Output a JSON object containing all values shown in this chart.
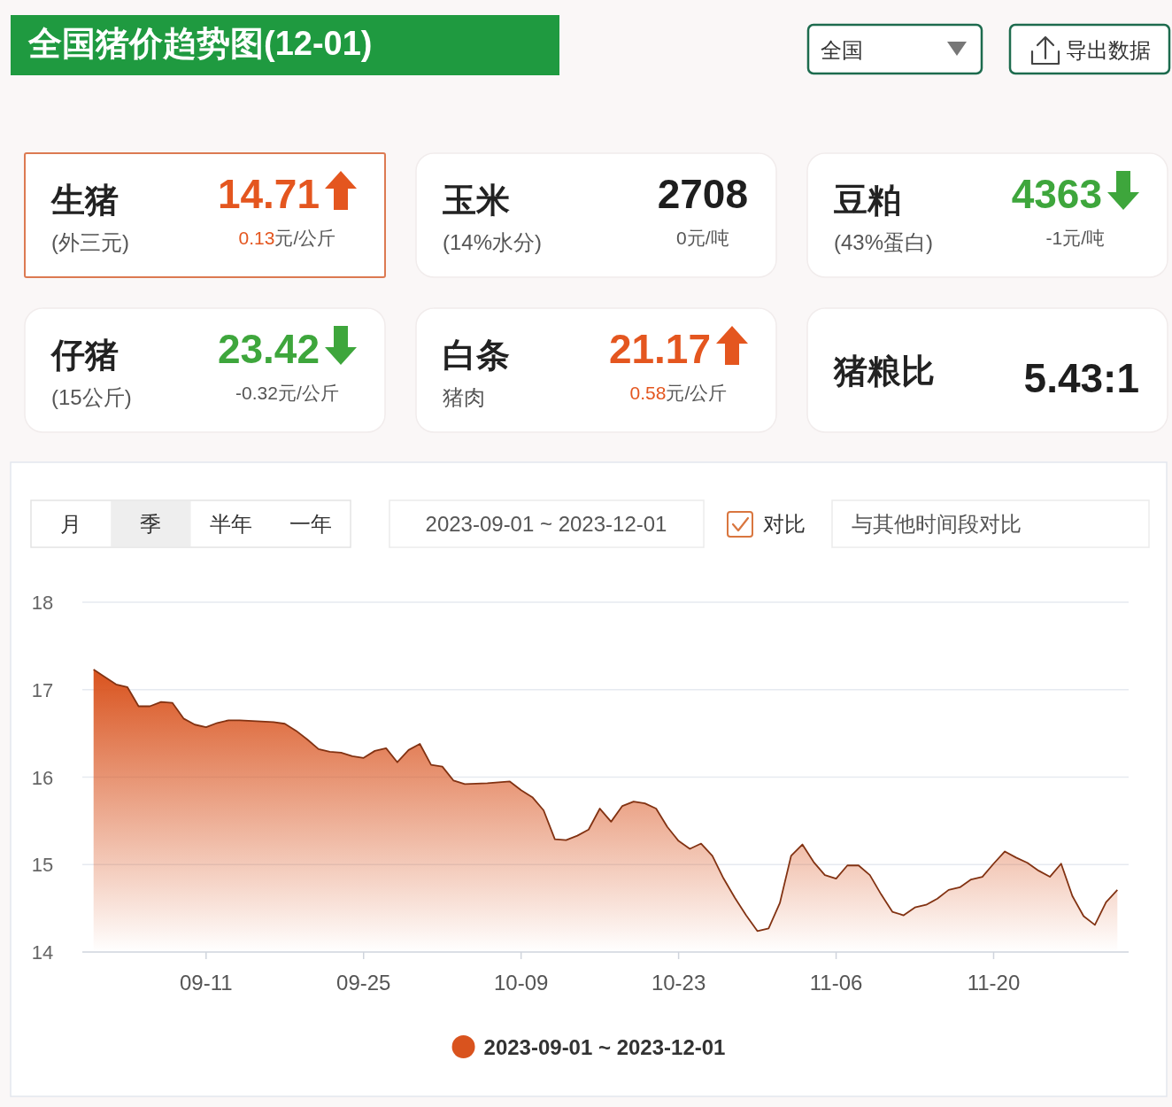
{
  "chart_data": [
    {
      "type": "other",
      "title": "全国猪价趋势图(12-01)",
      "annotations": [
        "全国",
        "导出数据"
      ]
    },
    {
      "type": "other",
      "title": "生猪",
      "subtitle": "(外三元)",
      "annotations": [
        "14.71",
        "0.13元/公斤"
      ]
    },
    {
      "type": "other",
      "title": "玉米",
      "subtitle": "(14%水分)",
      "annotations": [
        "2708",
        "0元/吨"
      ]
    },
    {
      "type": "other",
      "title": "豆粕",
      "subtitle": "(43%蛋白)",
      "annotations": [
        "4363",
        "-1元/吨"
      ]
    },
    {
      "type": "other",
      "title": "仔猪",
      "subtitle": "(15公斤)",
      "annotations": [
        "23.42",
        "-0.32元/公斤"
      ]
    },
    {
      "type": "other",
      "title": "白条",
      "subtitle": "猪肉",
      "annotations": [
        "21.17",
        "0.58元/公斤"
      ]
    },
    {
      "type": "other",
      "title": "猪粮比",
      "annotations": [
        "5.43:1"
      ]
    },
    {
      "type": "area",
      "x": [
        "--09-01",
        "--09-03",
        "--09-04",
        "--09-05",
        "--09-06",
        "--09-07",
        "--09-08",
        "--09-09",
        "--09-10",
        "--09-11",
        "--09-12",
        "--09-13",
        "--09-14",
        "--09-17",
        "--09-18",
        "--09-19",
        "--09-20",
        "--09-21",
        "--09-22",
        "--09-23",
        "--09-24",
        "--09-25",
        "--09-26",
        "--09-27",
        "--09-28",
        "--09-29",
        "--09-30",
        "--10-01",
        "--10-02",
        "--10-03",
        "--10-04",
        "--10-06",
        "--10-08",
        "--10-09",
        "--10-10",
        "--10-11",
        "--10-12",
        "--10-13",
        "--10-14",
        "--10-15",
        "--10-16",
        "--10-17",
        "--10-18",
        "--10-19",
        "--10-20",
        "--10-21",
        "--10-22",
        "--10-23",
        "--10-24",
        "--10-25",
        "--10-26",
        "--10-27",
        "--10-28",
        "--10-29",
        "--10-30",
        "--10-31",
        "--11-01",
        "--11-02",
        "--11-03",
        "--11-04",
        "--11-05",
        "--11-06",
        "--11-07",
        "--11-08",
        "--11-09",
        "--11-10",
        "--11-11",
        "--11-12",
        "--11-13",
        "--11-14",
        "--11-15",
        "--11-16",
        "--11-17",
        "--11-18",
        "--11-19",
        "--11-20",
        "--11-21",
        "--11-22",
        "--11-23",
        "--11-24",
        "--11-25",
        "--11-26",
        "--11-27",
        "--11-28",
        "--11-29",
        "--11-30",
        "--12-01"
      ],
      "series": [
        {
          "name": "2023-09-01 ~ 2023-12-01",
          "color": "#d9531e",
          "values": [
            17.23,
            17.06,
            17.03,
            16.81,
            16.81,
            16.86,
            16.85,
            16.67,
            16.6,
            16.57,
            16.62,
            16.65,
            16.65,
            16.63,
            16.61,
            16.53,
            16.43,
            16.32,
            16.29,
            16.28,
            16.24,
            16.22,
            16.3,
            16.33,
            16.17,
            16.31,
            16.38,
            16.14,
            16.12,
            15.96,
            15.92,
            15.93,
            15.95,
            15.85,
            15.77,
            15.62,
            15.29,
            15.28,
            15.33,
            15.4,
            15.64,
            15.49,
            15.67,
            15.72,
            15.7,
            15.64,
            15.43,
            15.27,
            15.18,
            15.24,
            15.1,
            14.84,
            14.62,
            14.42,
            14.24,
            14.27,
            14.56,
            15.1,
            15.23,
            15.03,
            14.88,
            14.84,
            14.99,
            14.99,
            14.88,
            14.66,
            14.46,
            14.42,
            14.51,
            14.54,
            14.61,
            14.71,
            14.74,
            14.83,
            14.86,
            15.01,
            15.15,
            15.08,
            15.02,
            14.93,
            14.86,
            15.01,
            14.64,
            14.41,
            14.31,
            14.57,
            14.71
          ]
        }
      ],
      "xlim": [
        "--08-31",
        "--12-02"
      ],
      "xticks": [
        {
          "value": "--09-11",
          "label": "09-11"
        },
        {
          "value": "--09-25",
          "label": "09-25"
        },
        {
          "value": "--10-09",
          "label": "10-09"
        },
        {
          "value": "--10-23",
          "label": "10-23"
        },
        {
          "value": "--11-06",
          "label": "11-06"
        },
        {
          "value": "--11-20",
          "label": "11-20"
        }
      ],
      "ylim": [
        14,
        18
      ],
      "yticks": [
        14,
        15,
        16,
        17,
        18
      ],
      "grid": "y",
      "legend": "bottom",
      "annotations": [
        "月",
        "季",
        "半年",
        "一年",
        "2023-09-01 ~ 2023-12-01",
        "对比",
        "与其他时间段对比"
      ]
    }
  ]
}
